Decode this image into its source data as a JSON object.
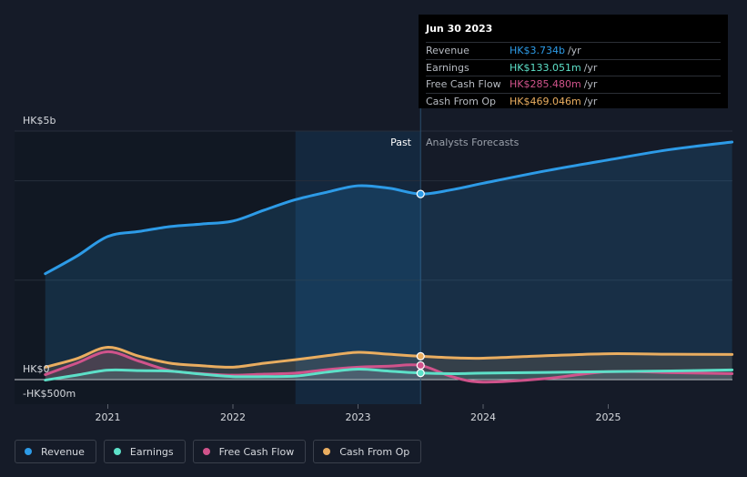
{
  "chart_data": {
    "type": "line",
    "y_axis": {
      "top_label": "HK$5b",
      "zero_label": "HK$0",
      "bottom_label": "-HK$500m",
      "ylim": [
        -500,
        5000
      ],
      "unit": "HK$m"
    },
    "x_ticks": [
      "2021",
      "2022",
      "2023",
      "2024",
      "2025"
    ],
    "regions": {
      "past_label": "Past",
      "forecast_label": "Analysts Forecasts"
    },
    "colors": {
      "revenue": "#2d9be7",
      "earnings": "#5de0c8",
      "free_cash_flow": "#d0538b",
      "cash_from_op": "#e9ad60",
      "background": "#151b28"
    },
    "series": [
      {
        "name": "Revenue",
        "key": "revenue",
        "x": [
          2020.5,
          2020.75,
          2021.0,
          2021.25,
          2021.5,
          2021.75,
          2022.0,
          2022.25,
          2022.5,
          2022.75,
          2023.0,
          2023.25,
          2023.5,
          2023.75,
          2024.0,
          2024.5,
          2025.0,
          2025.5,
          2025.99
        ],
        "values": [
          2130,
          2480,
          2880,
          2980,
          3080,
          3130,
          3190,
          3410,
          3620,
          3770,
          3900,
          3850,
          3734,
          3820,
          3950,
          4200,
          4420,
          4630,
          4780
        ]
      },
      {
        "name": "Earnings",
        "key": "earnings",
        "x": [
          2020.5,
          2020.75,
          2021.0,
          2021.25,
          2021.5,
          2021.75,
          2022.0,
          2022.25,
          2022.5,
          2022.75,
          2023.0,
          2023.25,
          2023.5,
          2023.75,
          2024.0,
          2024.5,
          2025.0,
          2025.5,
          2025.99
        ],
        "values": [
          -10,
          90,
          190,
          180,
          170,
          110,
          60,
          60,
          70,
          150,
          210,
          170,
          133,
          120,
          130,
          145,
          160,
          175,
          195
        ]
      },
      {
        "name": "Free Cash Flow",
        "key": "free_cash_flow",
        "x": [
          2020.5,
          2020.75,
          2021.0,
          2021.25,
          2021.5,
          2021.75,
          2022.0,
          2022.25,
          2022.5,
          2022.75,
          2023.0,
          2023.25,
          2023.5,
          2023.75,
          2024.0,
          2024.5,
          2025.0,
          2025.5,
          2025.99
        ],
        "values": [
          100,
          330,
          560,
          370,
          180,
          120,
          90,
          110,
          130,
          200,
          250,
          270,
          285,
          60,
          -50,
          20,
          160,
          140,
          120
        ]
      },
      {
        "name": "Cash From Op",
        "key": "cash_from_op",
        "x": [
          2020.5,
          2020.75,
          2021.0,
          2021.25,
          2021.5,
          2021.75,
          2022.0,
          2022.25,
          2022.5,
          2022.75,
          2023.0,
          2023.25,
          2023.5,
          2023.75,
          2024.0,
          2024.5,
          2025.0,
          2025.5,
          2025.99
        ],
        "values": [
          250,
          420,
          650,
          470,
          330,
          280,
          250,
          330,
          400,
          480,
          550,
          510,
          469,
          440,
          430,
          480,
          520,
          510,
          505
        ]
      }
    ],
    "highlight_x": 2023.5,
    "legend_placement": "bottom-left",
    "grid": true
  },
  "tooltip": {
    "date": "Jun 30 2023",
    "rows": [
      {
        "label": "Revenue",
        "value": "HK$3.734b",
        "unit": "/yr",
        "color": "#2d9be7"
      },
      {
        "label": "Earnings",
        "value": "HK$133.051m",
        "unit": "/yr",
        "color": "#5de0c8"
      },
      {
        "label": "Free Cash Flow",
        "value": "HK$285.480m",
        "unit": "/yr",
        "color": "#d0538b"
      },
      {
        "label": "Cash From Op",
        "value": "HK$469.046m",
        "unit": "/yr",
        "color": "#e9ad60"
      }
    ]
  },
  "legend": [
    {
      "label": "Revenue",
      "color": "#2d9be7"
    },
    {
      "label": "Earnings",
      "color": "#5de0c8"
    },
    {
      "label": "Free Cash Flow",
      "color": "#d0538b"
    },
    {
      "label": "Cash From Op",
      "color": "#e9ad60"
    }
  ]
}
